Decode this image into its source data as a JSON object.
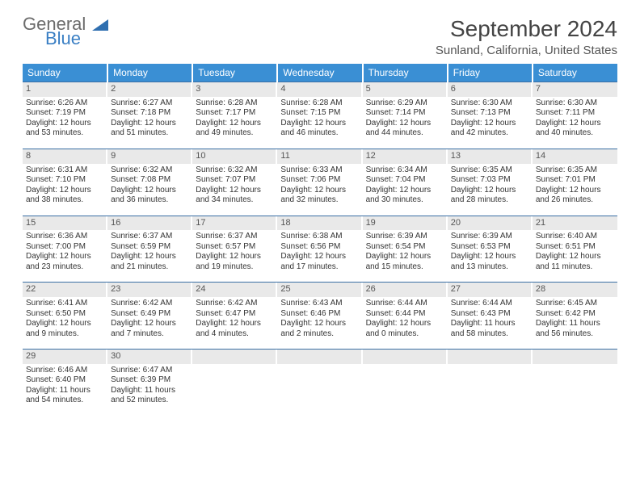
{
  "brand": {
    "general": "General",
    "blue": "Blue"
  },
  "title": "September 2024",
  "location": "Sunland, California, United States",
  "colors": {
    "header_bg": "#3a8fd4",
    "border": "#3a6fa4",
    "daynum_bg": "#e9e9e9"
  },
  "dow": [
    "Sunday",
    "Monday",
    "Tuesday",
    "Wednesday",
    "Thursday",
    "Friday",
    "Saturday"
  ],
  "weeks": [
    [
      {
        "n": "1",
        "sr": "6:26 AM",
        "ss": "7:19 PM",
        "dl": "12 hours and 53 minutes."
      },
      {
        "n": "2",
        "sr": "6:27 AM",
        "ss": "7:18 PM",
        "dl": "12 hours and 51 minutes."
      },
      {
        "n": "3",
        "sr": "6:28 AM",
        "ss": "7:17 PM",
        "dl": "12 hours and 49 minutes."
      },
      {
        "n": "4",
        "sr": "6:28 AM",
        "ss": "7:15 PM",
        "dl": "12 hours and 46 minutes."
      },
      {
        "n": "5",
        "sr": "6:29 AM",
        "ss": "7:14 PM",
        "dl": "12 hours and 44 minutes."
      },
      {
        "n": "6",
        "sr": "6:30 AM",
        "ss": "7:13 PM",
        "dl": "12 hours and 42 minutes."
      },
      {
        "n": "7",
        "sr": "6:30 AM",
        "ss": "7:11 PM",
        "dl": "12 hours and 40 minutes."
      }
    ],
    [
      {
        "n": "8",
        "sr": "6:31 AM",
        "ss": "7:10 PM",
        "dl": "12 hours and 38 minutes."
      },
      {
        "n": "9",
        "sr": "6:32 AM",
        "ss": "7:08 PM",
        "dl": "12 hours and 36 minutes."
      },
      {
        "n": "10",
        "sr": "6:32 AM",
        "ss": "7:07 PM",
        "dl": "12 hours and 34 minutes."
      },
      {
        "n": "11",
        "sr": "6:33 AM",
        "ss": "7:06 PM",
        "dl": "12 hours and 32 minutes."
      },
      {
        "n": "12",
        "sr": "6:34 AM",
        "ss": "7:04 PM",
        "dl": "12 hours and 30 minutes."
      },
      {
        "n": "13",
        "sr": "6:35 AM",
        "ss": "7:03 PM",
        "dl": "12 hours and 28 minutes."
      },
      {
        "n": "14",
        "sr": "6:35 AM",
        "ss": "7:01 PM",
        "dl": "12 hours and 26 minutes."
      }
    ],
    [
      {
        "n": "15",
        "sr": "6:36 AM",
        "ss": "7:00 PM",
        "dl": "12 hours and 23 minutes."
      },
      {
        "n": "16",
        "sr": "6:37 AM",
        "ss": "6:59 PM",
        "dl": "12 hours and 21 minutes."
      },
      {
        "n": "17",
        "sr": "6:37 AM",
        "ss": "6:57 PM",
        "dl": "12 hours and 19 minutes."
      },
      {
        "n": "18",
        "sr": "6:38 AM",
        "ss": "6:56 PM",
        "dl": "12 hours and 17 minutes."
      },
      {
        "n": "19",
        "sr": "6:39 AM",
        "ss": "6:54 PM",
        "dl": "12 hours and 15 minutes."
      },
      {
        "n": "20",
        "sr": "6:39 AM",
        "ss": "6:53 PM",
        "dl": "12 hours and 13 minutes."
      },
      {
        "n": "21",
        "sr": "6:40 AM",
        "ss": "6:51 PM",
        "dl": "12 hours and 11 minutes."
      }
    ],
    [
      {
        "n": "22",
        "sr": "6:41 AM",
        "ss": "6:50 PM",
        "dl": "12 hours and 9 minutes."
      },
      {
        "n": "23",
        "sr": "6:42 AM",
        "ss": "6:49 PM",
        "dl": "12 hours and 7 minutes."
      },
      {
        "n": "24",
        "sr": "6:42 AM",
        "ss": "6:47 PM",
        "dl": "12 hours and 4 minutes."
      },
      {
        "n": "25",
        "sr": "6:43 AM",
        "ss": "6:46 PM",
        "dl": "12 hours and 2 minutes."
      },
      {
        "n": "26",
        "sr": "6:44 AM",
        "ss": "6:44 PM",
        "dl": "12 hours and 0 minutes."
      },
      {
        "n": "27",
        "sr": "6:44 AM",
        "ss": "6:43 PM",
        "dl": "11 hours and 58 minutes."
      },
      {
        "n": "28",
        "sr": "6:45 AM",
        "ss": "6:42 PM",
        "dl": "11 hours and 56 minutes."
      }
    ],
    [
      {
        "n": "29",
        "sr": "6:46 AM",
        "ss": "6:40 PM",
        "dl": "11 hours and 54 minutes."
      },
      {
        "n": "30",
        "sr": "6:47 AM",
        "ss": "6:39 PM",
        "dl": "11 hours and 52 minutes."
      },
      null,
      null,
      null,
      null,
      null
    ]
  ],
  "labels": {
    "sunrise": "Sunrise: ",
    "sunset": "Sunset: ",
    "daylight": "Daylight: "
  }
}
